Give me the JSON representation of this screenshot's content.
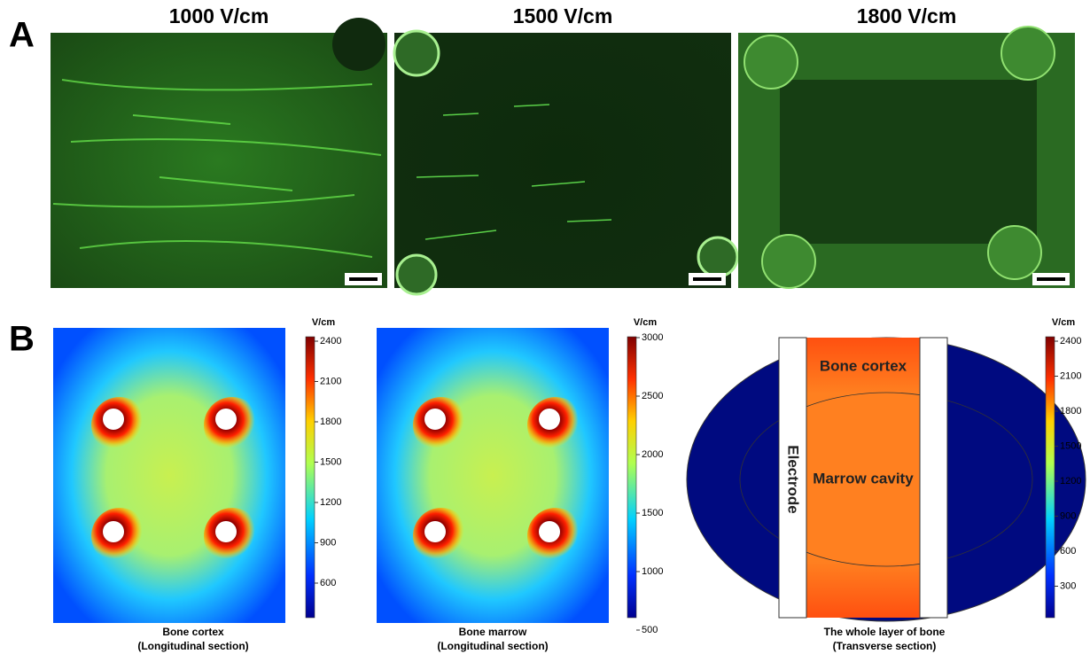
{
  "panel_a": {
    "label": "A",
    "images": [
      {
        "title": "1000 V/cm"
      },
      {
        "title": "1500 V/cm"
      },
      {
        "title": "1800 V/cm"
      }
    ]
  },
  "panel_b": {
    "label": "B",
    "maps": [
      {
        "unit": "V/cm",
        "ticks": [
          2400,
          2100,
          1800,
          1500,
          1200,
          900,
          600
        ],
        "caption": [
          "Bone cortex",
          "(Longitudinal section)"
        ]
      },
      {
        "unit": "V/cm",
        "ticks": [
          3000,
          2500,
          2000,
          1500,
          1000,
          500
        ],
        "caption": [
          "Bone marrow",
          "(Longitudinal section)"
        ]
      },
      {
        "unit": "V/cm",
        "ticks": [
          2400,
          2100,
          1800,
          1500,
          1200,
          900,
          600,
          300
        ],
        "caption": [
          "The whole layer of bone",
          "(Transverse section)"
        ],
        "labels": [
          "Bone cortex",
          "Marrow cavity",
          "Electrode"
        ]
      }
    ]
  }
}
